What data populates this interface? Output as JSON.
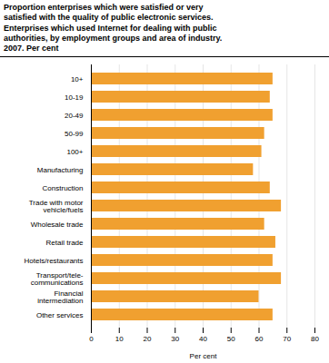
{
  "chart_data": {
    "type": "bar",
    "orientation": "horizontal",
    "title": "Proportion enterprises which were satisfied or very\nsatisfied with the quality of public electronic services.\nEnterprises which used Internet for dealing with public\nauthorities, by employment groups and area of industry.\n2007. Per cent",
    "categories": [
      "10+",
      "10-19",
      "20-49",
      "50-99",
      "100+",
      "Manufacturing",
      "Construction",
      "Trade with motor\nvehicle/fuels",
      "Wholesale trade",
      "Retail trade",
      "Hotels/restaurants",
      "Transport/tele-\ncommunications",
      "Financial\nintermediation",
      "Other services"
    ],
    "values": [
      65,
      64,
      65,
      62,
      61,
      58,
      64,
      68,
      62,
      66,
      65,
      68,
      60,
      65
    ],
    "color": "#F0A030",
    "xlabel": "Per cent",
    "xlim": [
      0,
      80
    ],
    "xticks": [
      0,
      10,
      20,
      30,
      40,
      50,
      60,
      70,
      80
    ],
    "grid": true
  }
}
